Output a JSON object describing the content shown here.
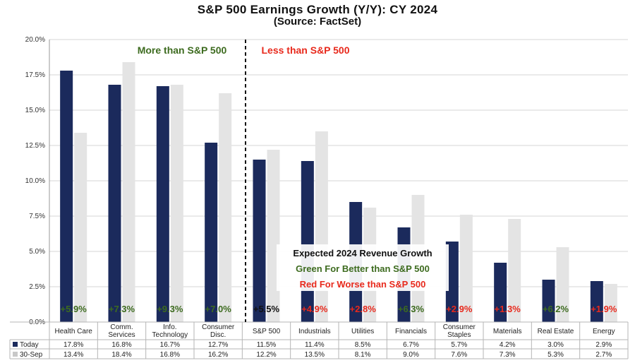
{
  "header": {
    "title": "S&P 500 Earnings Growth (Y/Y): CY 2024",
    "subtitle": "(Source: FactSet)"
  },
  "annotations": {
    "more_label": "More than S&P 500",
    "less_label": "Less than S&P 500",
    "box_line1": "Expected 2024 Revenue Growth",
    "box_line2": "Green For Better than S&P 500",
    "box_line3": "Red For Worse than S&P 500"
  },
  "colors": {
    "today": "#1b2a5c",
    "sep30": "#e4e4e4",
    "green": "#3d6b1f",
    "red": "#e8291c",
    "black": "#111111"
  },
  "chart_data": {
    "type": "bar",
    "title": "S&P 500 Earnings Growth (Y/Y): CY 2024",
    "subtitle": "(Source: FactSet)",
    "categories": [
      "Health Care",
      "Comm.\nServices",
      "Info.\nTechnology",
      "Consumer\nDisc.",
      "S&P 500",
      "Industrials",
      "Utilities",
      "Financials",
      "Consumer\nStaples",
      "Materials",
      "Real Estate",
      "Energy"
    ],
    "series": [
      {
        "name": "Today",
        "color": "#1b2a5c",
        "values": [
          17.8,
          16.8,
          16.7,
          12.7,
          11.5,
          11.4,
          8.5,
          6.7,
          5.7,
          4.2,
          3.0,
          2.9
        ],
        "labels": [
          "17.8%",
          "16.8%",
          "16.7%",
          "12.7%",
          "11.5%",
          "11.4%",
          "8.5%",
          "6.7%",
          "5.7%",
          "4.2%",
          "3.0%",
          "2.9%"
        ]
      },
      {
        "name": "30-Sep",
        "color": "#e4e4e4",
        "values": [
          13.4,
          18.4,
          16.8,
          16.2,
          12.2,
          13.5,
          8.1,
          9.0,
          7.6,
          7.3,
          5.3,
          2.7
        ],
        "labels": [
          "13.4%",
          "18.4%",
          "16.8%",
          "16.2%",
          "12.2%",
          "13.5%",
          "8.1%",
          "9.0%",
          "7.6%",
          "7.3%",
          "5.3%",
          "2.7%"
        ]
      }
    ],
    "revenue_growth": [
      {
        "text": "+5.9%",
        "color": "green"
      },
      {
        "text": "+7.3%",
        "color": "green"
      },
      {
        "text": "+9.3%",
        "color": "green"
      },
      {
        "text": "+7.0%",
        "color": "green"
      },
      {
        "text": "+5.5%",
        "color": "black"
      },
      {
        "text": "+4.9%",
        "color": "red"
      },
      {
        "text": "+2.8%",
        "color": "red"
      },
      {
        "text": "+6.3%",
        "color": "green"
      },
      {
        "text": "+2.9%",
        "color": "red"
      },
      {
        "text": "+1.3%",
        "color": "red"
      },
      {
        "text": "+6.2%",
        "color": "green"
      },
      {
        "text": "+1.9%",
        "color": "red"
      }
    ],
    "ylim": [
      0,
      20
    ],
    "yticks": [
      "0.0%",
      "2.5%",
      "5.0%",
      "7.5%",
      "10.0%",
      "12.5%",
      "15.0%",
      "17.5%",
      "20.0%"
    ],
    "grid": true,
    "legend": "data table below x-axis"
  }
}
